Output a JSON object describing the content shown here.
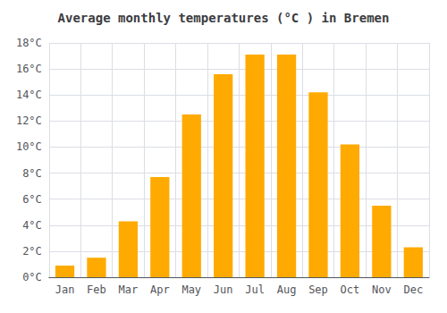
{
  "chart_data": {
    "type": "bar",
    "title": "Average monthly temperatures (°C ) in Bremen",
    "categories": [
      "Jan",
      "Feb",
      "Mar",
      "Apr",
      "May",
      "Jun",
      "Jul",
      "Aug",
      "Sep",
      "Oct",
      "Nov",
      "Dec"
    ],
    "values": [
      0.9,
      1.5,
      4.3,
      7.7,
      12.5,
      15.6,
      17.1,
      17.1,
      14.2,
      10.2,
      5.5,
      2.3
    ],
    "color": "#FFAA00",
    "ylim": [
      0,
      18
    ],
    "yticks": [
      {
        "value": 0,
        "label": "0°C"
      },
      {
        "value": 2,
        "label": "2°C"
      },
      {
        "value": 4,
        "label": "4°C"
      },
      {
        "value": 6,
        "label": "6°C"
      },
      {
        "value": 8,
        "label": "8°C"
      },
      {
        "value": 10,
        "label": "10°C"
      },
      {
        "value": 12,
        "label": "12°C"
      },
      {
        "value": 14,
        "label": "14°C"
      },
      {
        "value": 16,
        "label": "16°C"
      },
      {
        "value": 18,
        "label": "18°C"
      }
    ],
    "grid": true
  }
}
